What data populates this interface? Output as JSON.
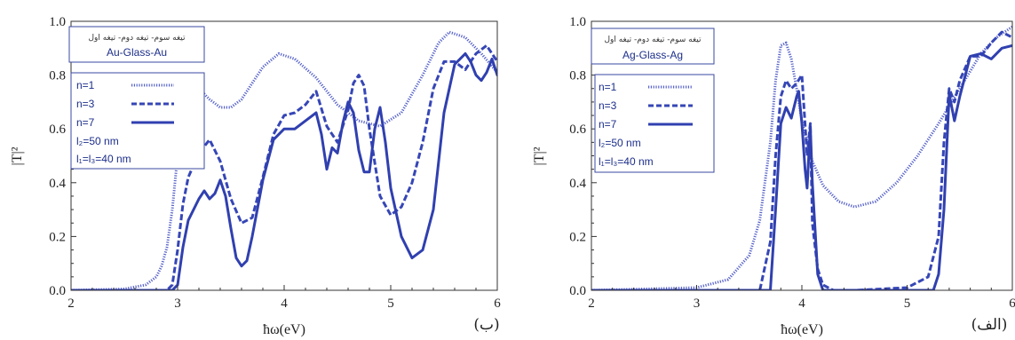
{
  "chart_data": [
    {
      "type": "line",
      "panel_label": "(ب)",
      "legend_caption_ar": "تیغه سوم- تیغه دوم- تیغه اول",
      "legend_caption": "Au-Glass-Au",
      "xlabel": "ħω(eV)",
      "ylabel": "|T|²",
      "xlim": [
        2,
        6
      ],
      "ylim": [
        0,
        1
      ],
      "xticks": [
        "2",
        "3",
        "4",
        "5",
        "6"
      ],
      "yticks": [
        "0.0",
        "0.2",
        "0.4",
        "0.6",
        "0.8",
        "1.0"
      ],
      "grid": false,
      "legend_position": "top-left",
      "legend_extra": [
        "l₂=50 nm",
        "l₁=l₃=40 nm"
      ],
      "series": [
        {
          "name": "n=1",
          "style": "dotted",
          "x": [
            2.0,
            2.5,
            2.7,
            2.8,
            2.85,
            2.9,
            2.95,
            3.0,
            3.05,
            3.1,
            3.15,
            3.2,
            3.3,
            3.4,
            3.5,
            3.6,
            3.8,
            3.95,
            4.1,
            4.3,
            4.5,
            4.7,
            4.9,
            5.1,
            5.3,
            5.45,
            5.55,
            5.7,
            5.85,
            6.0
          ],
          "y": [
            0.0,
            0.005,
            0.02,
            0.05,
            0.09,
            0.16,
            0.3,
            0.5,
            0.66,
            0.74,
            0.76,
            0.75,
            0.71,
            0.68,
            0.68,
            0.71,
            0.83,
            0.88,
            0.86,
            0.79,
            0.69,
            0.63,
            0.61,
            0.66,
            0.8,
            0.92,
            0.96,
            0.94,
            0.88,
            0.81
          ]
        },
        {
          "name": "n=3",
          "style": "dashed",
          "x": [
            2.0,
            2.9,
            2.95,
            3.0,
            3.05,
            3.1,
            3.2,
            3.3,
            3.4,
            3.5,
            3.6,
            3.7,
            3.8,
            3.9,
            4.0,
            4.1,
            4.2,
            4.3,
            4.4,
            4.5,
            4.6,
            4.65,
            4.7,
            4.75,
            4.8,
            4.9,
            5.0,
            5.1,
            5.2,
            5.3,
            5.4,
            5.5,
            5.6,
            5.7,
            5.8,
            5.9,
            6.0
          ],
          "y": [
            0.0,
            0.0,
            0.02,
            0.15,
            0.32,
            0.42,
            0.51,
            0.56,
            0.48,
            0.34,
            0.25,
            0.27,
            0.42,
            0.58,
            0.65,
            0.66,
            0.69,
            0.74,
            0.61,
            0.55,
            0.67,
            0.77,
            0.8,
            0.76,
            0.6,
            0.35,
            0.28,
            0.31,
            0.4,
            0.55,
            0.75,
            0.85,
            0.85,
            0.82,
            0.88,
            0.91,
            0.85
          ]
        },
        {
          "name": "n=7",
          "style": "solid",
          "x": [
            2.0,
            2.95,
            3.0,
            3.05,
            3.1,
            3.2,
            3.25,
            3.3,
            3.35,
            3.4,
            3.45,
            3.5,
            3.55,
            3.6,
            3.65,
            3.7,
            3.8,
            3.9,
            4.0,
            4.1,
            4.2,
            4.3,
            4.35,
            4.4,
            4.45,
            4.5,
            4.55,
            4.6,
            4.65,
            4.7,
            4.75,
            4.8,
            4.85,
            4.9,
            4.95,
            5.0,
            5.1,
            5.2,
            5.3,
            5.4,
            5.5,
            5.6,
            5.7,
            5.75,
            5.8,
            5.85,
            5.9,
            5.95,
            6.0
          ],
          "y": [
            0.0,
            0.0,
            0.02,
            0.16,
            0.26,
            0.34,
            0.37,
            0.34,
            0.36,
            0.41,
            0.35,
            0.23,
            0.12,
            0.09,
            0.11,
            0.2,
            0.41,
            0.56,
            0.6,
            0.6,
            0.63,
            0.66,
            0.58,
            0.45,
            0.53,
            0.51,
            0.62,
            0.7,
            0.66,
            0.52,
            0.44,
            0.44,
            0.6,
            0.68,
            0.55,
            0.38,
            0.2,
            0.12,
            0.15,
            0.3,
            0.66,
            0.84,
            0.88,
            0.85,
            0.8,
            0.78,
            0.81,
            0.86,
            0.8
          ]
        }
      ]
    },
    {
      "type": "line",
      "panel_label": "(الف)",
      "legend_caption_ar": "تیغه سوم- تیغه دوم- تیغه اول",
      "legend_caption": "Ag-Glass-Ag",
      "xlabel": "ħω(eV)",
      "ylabel": "|T|²",
      "xlim": [
        2,
        6
      ],
      "ylim": [
        0,
        1
      ],
      "xticks": [
        "2",
        "3",
        "4",
        "5",
        "6"
      ],
      "yticks": [
        "0.0",
        "0.2",
        "0.4",
        "0.6",
        "0.8",
        "1.0"
      ],
      "grid": false,
      "legend_position": "top-left",
      "legend_extra": [
        "l₂=50 nm",
        "l₁=l₃=40 nm"
      ],
      "series": [
        {
          "name": "n=1",
          "style": "dotted",
          "x": [
            2.0,
            3.0,
            3.3,
            3.5,
            3.6,
            3.7,
            3.75,
            3.8,
            3.85,
            3.9,
            3.95,
            4.0,
            4.1,
            4.2,
            4.35,
            4.5,
            4.7,
            4.9,
            5.1,
            5.3,
            5.5,
            5.7,
            5.85,
            6.0
          ],
          "y": [
            0.0,
            0.01,
            0.04,
            0.13,
            0.26,
            0.55,
            0.78,
            0.91,
            0.92,
            0.86,
            0.75,
            0.63,
            0.48,
            0.39,
            0.33,
            0.31,
            0.33,
            0.4,
            0.5,
            0.62,
            0.75,
            0.88,
            0.94,
            0.98
          ]
        },
        {
          "name": "n=3",
          "style": "dashed",
          "x": [
            2.0,
            3.6,
            3.7,
            3.75,
            3.8,
            3.85,
            3.9,
            3.95,
            4.0,
            4.05,
            4.08,
            4.1,
            4.15,
            4.2,
            4.3,
            4.5,
            5.0,
            5.2,
            5.3,
            5.35,
            5.4,
            5.45,
            5.5,
            5.6,
            5.7,
            5.8,
            5.9,
            6.0
          ],
          "y": [
            0.0,
            0.0,
            0.18,
            0.5,
            0.72,
            0.78,
            0.75,
            0.77,
            0.8,
            0.5,
            0.62,
            0.25,
            0.08,
            0.02,
            0.0,
            0.0,
            0.01,
            0.05,
            0.2,
            0.55,
            0.75,
            0.7,
            0.78,
            0.87,
            0.87,
            0.92,
            0.96,
            0.94
          ]
        },
        {
          "name": "n=7",
          "style": "solid",
          "x": [
            2.0,
            3.7,
            3.75,
            3.8,
            3.85,
            3.9,
            3.95,
            3.97,
            4.0,
            4.03,
            4.05,
            4.08,
            4.1,
            4.15,
            4.2,
            5.25,
            5.3,
            5.35,
            5.4,
            5.45,
            5.5,
            5.6,
            5.7,
            5.8,
            5.9,
            6.0
          ],
          "y": [
            0.0,
            0.0,
            0.3,
            0.62,
            0.68,
            0.64,
            0.72,
            0.74,
            0.62,
            0.45,
            0.38,
            0.61,
            0.4,
            0.06,
            0.0,
            0.0,
            0.06,
            0.3,
            0.73,
            0.63,
            0.72,
            0.87,
            0.88,
            0.86,
            0.9,
            0.91
          ]
        }
      ]
    }
  ]
}
